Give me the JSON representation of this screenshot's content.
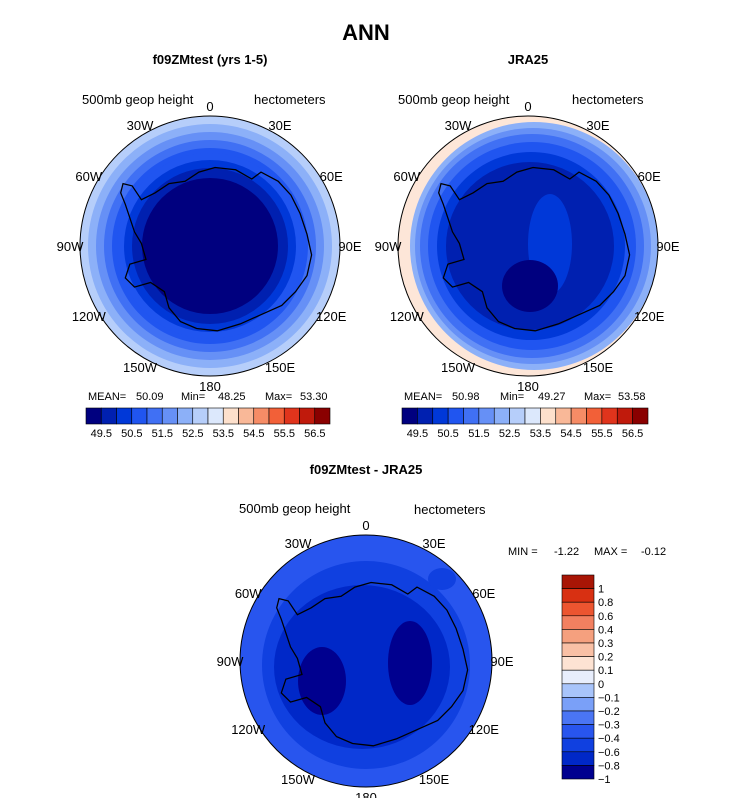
{
  "figure_title": "ANN",
  "colors": {
    "levels_full": [
      "#00007f",
      "#0020b0",
      "#0038d8",
      "#2055f0",
      "#4070f4",
      "#6690f6",
      "#8cb0f8",
      "#b6cefa",
      "#dce8fc",
      "#fde0cc",
      "#f9b898",
      "#f68c66",
      "#f26038",
      "#e0341c",
      "#c01a0c",
      "#8a0000"
    ],
    "diff_bar": [
      "#00008f",
      "#0028c8",
      "#1040e0",
      "#2855ee",
      "#4a75f4",
      "#7aa0f8",
      "#a8c4fa",
      "#e8eefc",
      "#fde3d3",
      "#f9c0a5",
      "#f5a07e",
      "#f28060",
      "#ec5530",
      "#d83012",
      "#a81505"
    ]
  },
  "chart_data": [
    {
      "type": "heatmap",
      "projection": "south-polar-stereographic",
      "title": "f09ZMtest (yrs 1-5)",
      "variable": "500mb geop height",
      "units": "hectometers",
      "stats": {
        "mean_label": "MEAN=",
        "mean": "50.09",
        "min_label": "Min=",
        "min": "48.25",
        "max_label": "Max=",
        "max": "53.30"
      },
      "levels": [
        "49.5",
        "50.5",
        "51.5",
        "52.5",
        "53.5",
        "54.5",
        "55.5",
        "56.5"
      ],
      "rings": [
        49.0,
        49.5,
        50.0,
        50.5,
        51.0,
        51.5,
        52.0,
        52.5,
        53.0
      ],
      "lon_labels": [
        "0",
        "30E",
        "60E",
        "90E",
        "120E",
        "150E",
        "180",
        "150W",
        "120W",
        "90W",
        "60W",
        "30W"
      ]
    },
    {
      "type": "heatmap",
      "projection": "south-polar-stereographic",
      "title": "JRA25",
      "variable": "500mb geop height",
      "units": "hectometers",
      "stats": {
        "mean_label": "MEAN=",
        "mean": "50.98",
        "min_label": "Min=",
        "min": "49.27",
        "max_label": "Max=",
        "max": "53.58"
      },
      "levels": [
        "49.5",
        "50.5",
        "51.5",
        "52.5",
        "53.5",
        "54.5",
        "55.5",
        "56.5"
      ],
      "lon_labels": [
        "0",
        "30E",
        "60E",
        "90E",
        "120E",
        "150E",
        "180",
        "150W",
        "120W",
        "90W",
        "60W",
        "30W"
      ]
    },
    {
      "type": "heatmap",
      "projection": "south-polar-stereographic",
      "title": "f09ZMtest - JRA25",
      "variable": "500mb geop height",
      "units": "hectometers",
      "stats": {
        "min_label": "MIN =",
        "min": "-1.22",
        "max_label": "MAX =",
        "max": "-0.12"
      },
      "levels": [
        "1",
        "0.8",
        "0.6",
        "0.4",
        "0.3",
        "0.2",
        "0.1",
        "0",
        "−0.1",
        "−0.2",
        "−0.3",
        "−0.4",
        "−0.6",
        "−0.8",
        "−1"
      ],
      "lon_labels": [
        "0",
        "30E",
        "60E",
        "90E",
        "120E",
        "150E",
        "180",
        "150W",
        "120W",
        "90W",
        "60W",
        "30W"
      ]
    }
  ]
}
